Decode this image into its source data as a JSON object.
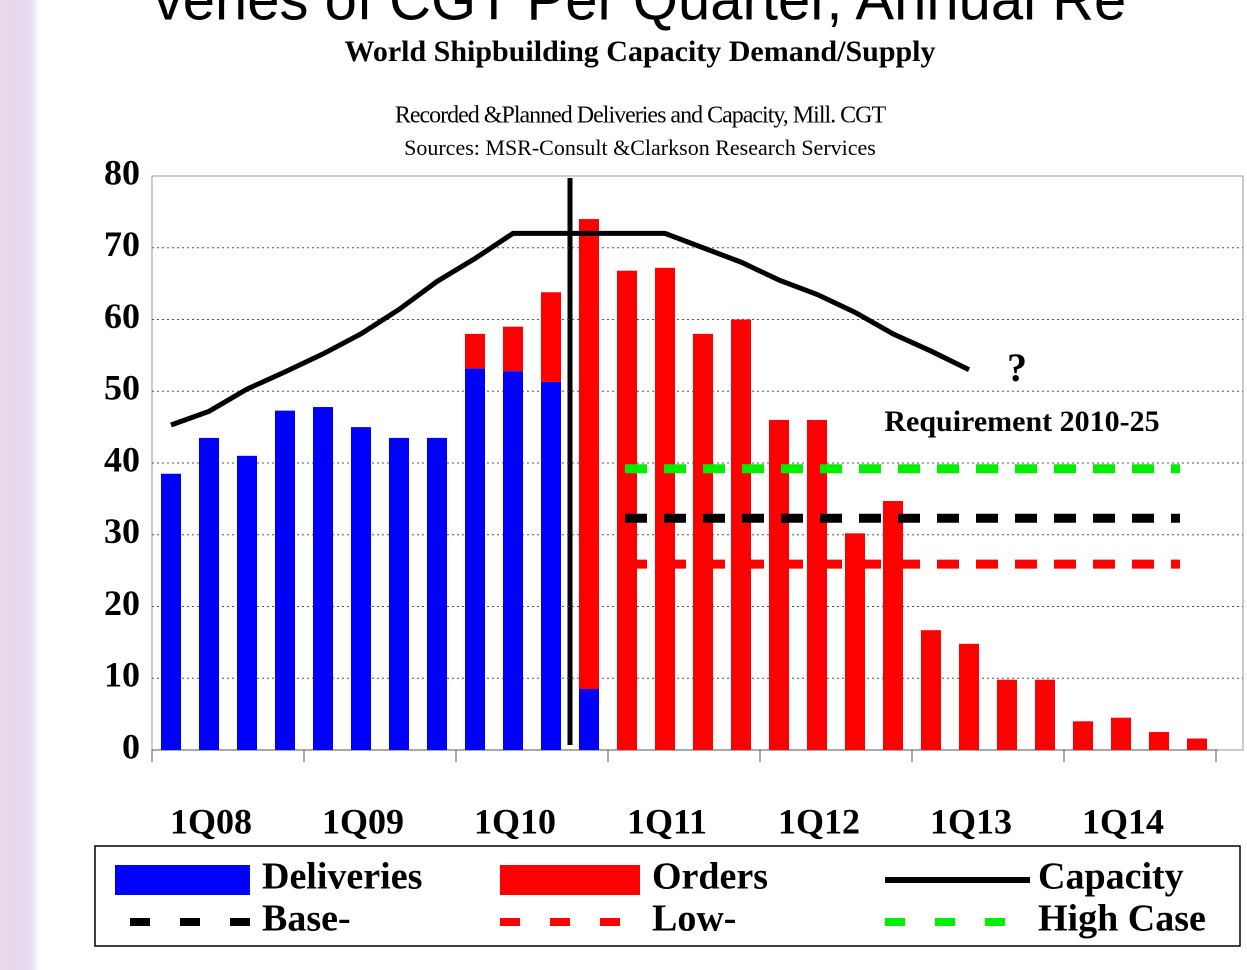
{
  "header": "veries of CGT Per Quarter, Annual Re",
  "chart_data": {
    "type": "bar",
    "title": "World Shipbuilding Capacity Demand/Supply",
    "subtitle": "Recorded &Planned Deliveries and Capacity, Mill. CGT",
    "source": "Sources: MSR-Consult &Clarkson Research Services",
    "annotations": [
      "?",
      "Requirement 2010-25"
    ],
    "categories": [
      "1Q08",
      null,
      null,
      null,
      "1Q09",
      null,
      null,
      null,
      "1Q10",
      null,
      null,
      null,
      "1Q11",
      null,
      null,
      null,
      "1Q12",
      null,
      null,
      null,
      "1Q13",
      null,
      null,
      null,
      "1Q14",
      null,
      null,
      null
    ],
    "series": [
      {
        "name": "Deliveries",
        "color": "#0000ff",
        "stack": true,
        "values": [
          38.5,
          43.5,
          41,
          47.3,
          47.8,
          45,
          43.5,
          43.5,
          53.2,
          52.8,
          51.3,
          8.5,
          null,
          null,
          null,
          null,
          null,
          null,
          null,
          null,
          null,
          null,
          null,
          null,
          null,
          null,
          null,
          null
        ]
      },
      {
        "name": "Orders",
        "color": "#ff0000",
        "stack": true,
        "values": [
          null,
          null,
          null,
          null,
          null,
          null,
          null,
          null,
          4.8,
          6.2,
          12.5,
          65.5,
          66.8,
          67.2,
          58,
          60,
          46,
          46,
          30.2,
          34.7,
          16.7,
          14.8,
          9.8,
          9.8,
          4,
          4.5,
          2.5,
          1.6
        ]
      },
      {
        "name": "Capacity",
        "color": "#000000",
        "type": "line",
        "values": [
          45.3,
          47.2,
          50.3,
          52.7,
          55.2,
          58,
          61.4,
          65.3,
          68.5,
          72,
          72,
          72,
          72,
          72,
          70,
          68,
          65.5,
          63.5,
          61,
          58,
          55.6,
          53,
          null,
          null,
          null,
          null,
          null,
          null
        ]
      }
    ],
    "reference_lines": [
      {
        "name": "Base-",
        "color": "#000000",
        "value": 32.3
      },
      {
        "name": "Low-",
        "color": "#ff0000",
        "value": 25.9
      },
      {
        "name": "High Case",
        "color": "#00ee00",
        "value": 39.2
      }
    ],
    "ylim": [
      0,
      80
    ],
    "yticks": [
      0,
      10,
      20,
      30,
      40,
      50,
      60,
      70,
      80
    ],
    "grid": true
  }
}
